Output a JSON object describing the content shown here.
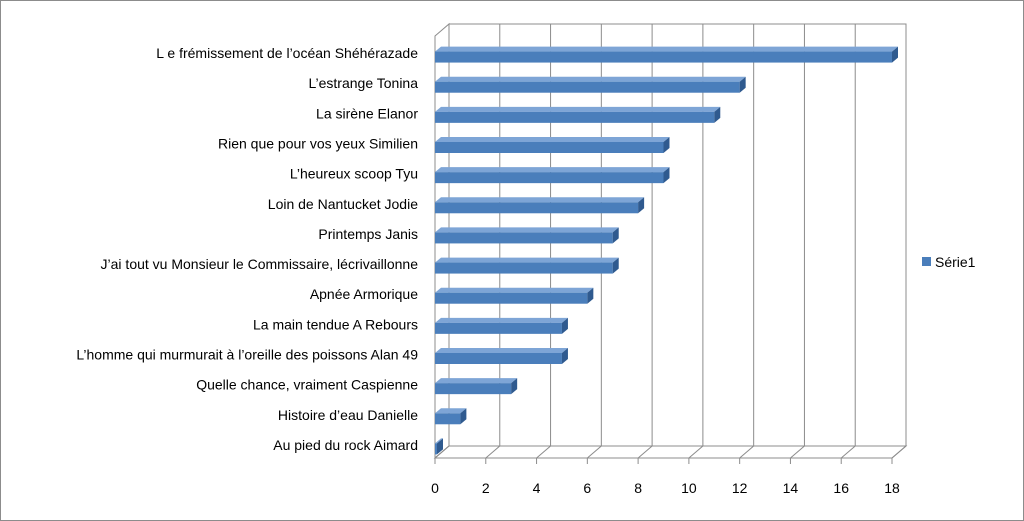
{
  "chart_data": {
    "type": "bar",
    "orientation": "horizontal",
    "categories": [
      "L e frémissement de l’océan Shéhérazade",
      "L’estrange Tonina",
      "La sirène Elanor",
      "Rien que pour vos yeux Similien",
      "L’heureux scoop Tyu",
      "Loin de Nantucket Jodie",
      "Printemps Janis",
      "J’ai tout vu Monsieur le Commissaire, lécrivaillonne",
      "Apnée Armorique",
      "La main tendue A Rebours",
      "L’homme qui murmurait à l’oreille des poissons Alan 49",
      "Quelle chance, vraiment Caspienne",
      "Histoire d’eau Danielle",
      "Au pied du rock Aimard"
    ],
    "series": [
      {
        "name": "Série1",
        "values": [
          18,
          12,
          11,
          9,
          9,
          8,
          7,
          7,
          6,
          5,
          5,
          3,
          1,
          0
        ],
        "color": "#4a7ebb"
      }
    ],
    "xticks": [
      "0",
      "2",
      "4",
      "6",
      "8",
      "10",
      "12",
      "14",
      "16",
      "18"
    ],
    "xlim": [
      0,
      18
    ],
    "grid": true,
    "legend_position": "right",
    "style": "3d"
  }
}
